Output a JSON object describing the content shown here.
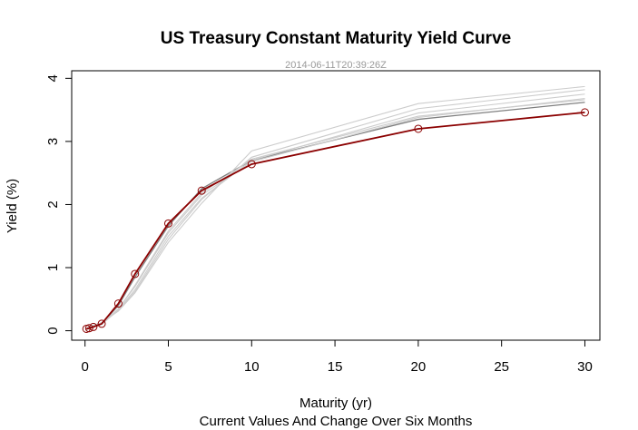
{
  "chart_data": {
    "type": "line",
    "title": "US Treasury Constant Maturity Yield Curve",
    "subtitle": "2014-06-11T20:39:26Z",
    "xlabel": "Maturity (yr)",
    "sublabel": "Current Values And Change Over Six Months",
    "ylabel": "Yield (%)",
    "xlim": [
      -0.8,
      30.9
    ],
    "ylim": [
      -0.15,
      4.12
    ],
    "x_ticks": [
      0,
      5,
      10,
      15,
      20,
      25,
      30
    ],
    "y_ticks": [
      0,
      1,
      2,
      3,
      4
    ],
    "grid": false,
    "colors": {
      "current": "#8b0000",
      "recent": "#7f7f7f",
      "history": "#cccccc",
      "axis": "#000000",
      "subtitle": "#999999"
    },
    "x": [
      0.083,
      0.25,
      0.5,
      1,
      2,
      3,
      5,
      7,
      10,
      20,
      30
    ],
    "current": [
      0.03,
      0.04,
      0.06,
      0.11,
      0.43,
      0.9,
      1.7,
      2.22,
      2.64,
      3.2,
      3.46
    ],
    "history": [
      [
        0.03,
        0.04,
        0.07,
        0.11,
        0.4,
        0.85,
        1.66,
        2.25,
        2.7,
        3.35,
        3.62
      ],
      [
        0.03,
        0.04,
        0.06,
        0.1,
        0.35,
        0.7,
        1.55,
        2.15,
        2.68,
        3.38,
        3.68
      ],
      [
        0.02,
        0.03,
        0.06,
        0.1,
        0.33,
        0.65,
        1.5,
        2.1,
        2.7,
        3.45,
        3.75
      ],
      [
        0.03,
        0.05,
        0.08,
        0.12,
        0.32,
        0.62,
        1.45,
        2.08,
        2.75,
        3.52,
        3.82
      ],
      [
        0.04,
        0.05,
        0.08,
        0.13,
        0.31,
        0.6,
        1.4,
        2.02,
        2.85,
        3.6,
        3.87
      ],
      [
        0.04,
        0.06,
        0.09,
        0.12,
        0.34,
        0.72,
        1.58,
        2.18,
        2.72,
        3.4,
        3.66
      ]
    ]
  }
}
